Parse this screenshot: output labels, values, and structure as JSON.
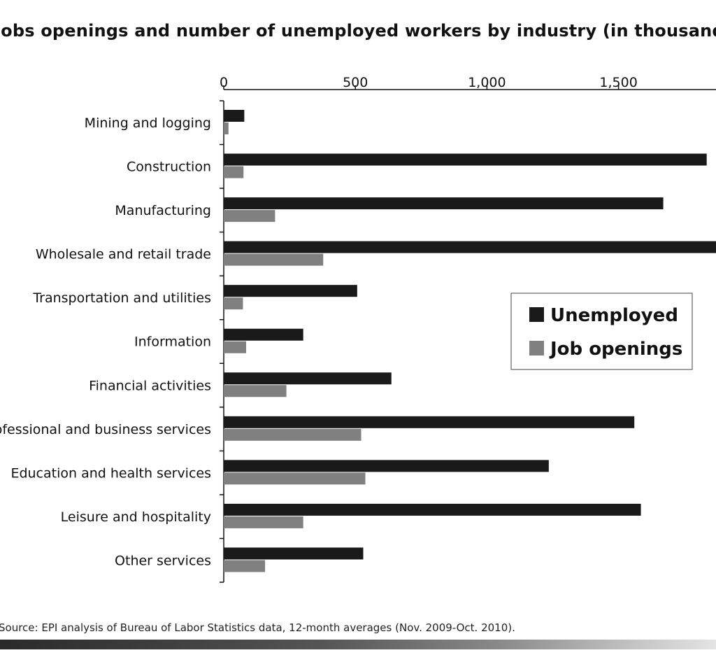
{
  "chart_data": {
    "type": "bar",
    "orientation": "horizontal",
    "title": "Jobs openings and number of unemployed workers by industry (in thousands)",
    "categories": [
      "Mining and logging",
      "Construction",
      "Manufacturing",
      "Wholesale and retail trade",
      "Transportation and utilities",
      "Information",
      "Financial activities",
      "Professional and business services",
      "Education and health services",
      "Leisure and hospitality",
      "Other services"
    ],
    "series": [
      {
        "name": "Unemployed",
        "color": "#1a1a1a",
        "values": [
          78,
          1835,
          1670,
          1890,
          507,
          302,
          637,
          1560,
          1235,
          1585,
          530
        ]
      },
      {
        "name": "Job openings",
        "color": "#808080",
        "values": [
          18,
          75,
          195,
          378,
          73,
          85,
          238,
          522,
          538,
          302,
          157
        ]
      }
    ],
    "x_ticks": [
      "0",
      "500",
      "1,000",
      "1,500"
    ],
    "x_tick_values": [
      0,
      500,
      1000,
      1500
    ],
    "xlim": [
      0,
      1880
    ],
    "grid": false,
    "legend_position": "right-middle",
    "xlabel": "",
    "ylabel": ""
  },
  "footnote": "Source: EPI analysis of Bureau of Labor Statistics data, 12-month averages (Nov. 2009-Oct. 2010)."
}
